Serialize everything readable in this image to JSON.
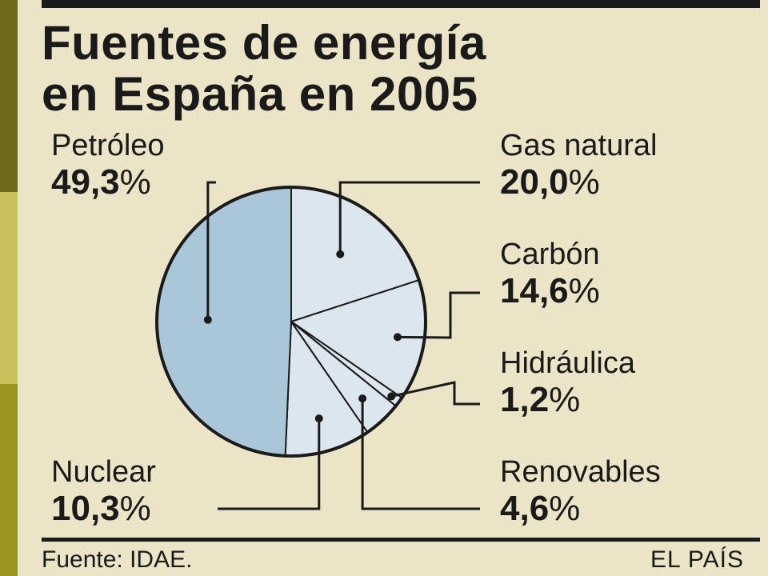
{
  "chart_data": {
    "type": "pie",
    "title_line1": "Fuentes de energía",
    "title_line2": "en España en 2005",
    "slices": [
      {
        "name": "Petróleo",
        "value": 49.3,
        "label": "49,3",
        "color": "#a9c7d9"
      },
      {
        "name": "Gas natural",
        "value": 20.0,
        "label": "20,0",
        "color": "#dce6ef"
      },
      {
        "name": "Carbón",
        "value": 14.6,
        "label": "14,6",
        "color": "#dce6ef"
      },
      {
        "name": "Hidráulica",
        "value": 1.2,
        "label": "1,2",
        "color": "#dce6ef"
      },
      {
        "name": "Renovables",
        "value": 4.6,
        "label": "4,6",
        "color": "#dce6ef"
      },
      {
        "name": "Nuclear",
        "value": 10.3,
        "label": "10,3",
        "color": "#dce6ef"
      }
    ],
    "unit": "%"
  },
  "footer": {
    "source": "Fuente: IDAE.",
    "publisher": "EL PAÍS"
  },
  "colors": {
    "background": "#ebe4c6",
    "ink": "#1a1a1a",
    "petroleo": "#a9c7d9",
    "other": "#dce6ef"
  }
}
